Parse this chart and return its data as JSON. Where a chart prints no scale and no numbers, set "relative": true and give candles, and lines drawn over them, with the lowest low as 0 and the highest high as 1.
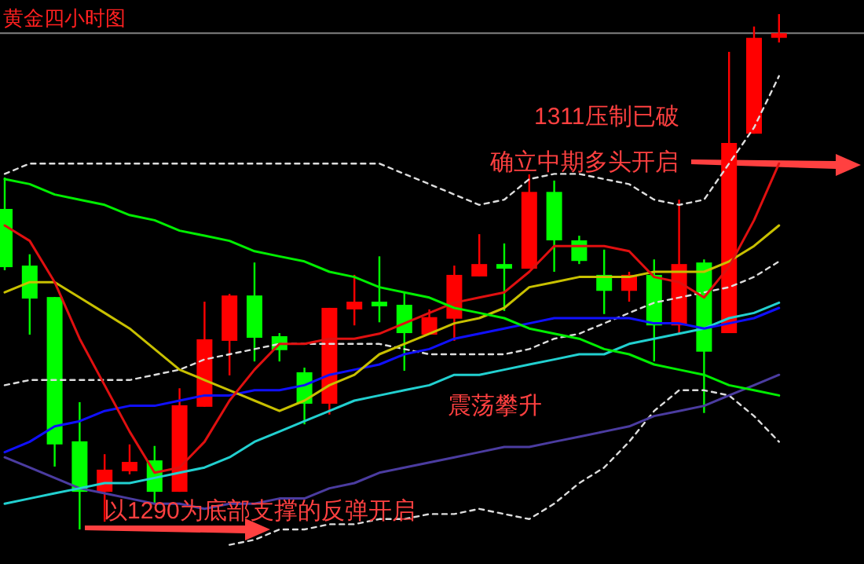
{
  "chart_data": {
    "type": "candlestick",
    "title": "黄金四小时图",
    "relative": true,
    "categories": [
      null,
      null,
      null,
      null,
      null,
      null,
      null,
      null,
      null,
      null,
      null,
      null,
      null,
      null,
      null,
      null,
      null,
      null,
      null,
      null,
      null,
      null,
      null,
      null,
      null,
      null,
      null,
      null,
      null,
      null,
      null,
      null
    ],
    "ohlc": [
      [
        0.622,
        0.683,
        0.503,
        0.509
      ],
      [
        0.512,
        0.534,
        0.378,
        0.448
      ],
      [
        0.451,
        0.451,
        0.122,
        0.165
      ],
      [
        0.171,
        0.247,
        0,
        0.073
      ],
      [
        0.073,
        0.146,
        0.015,
        0.116
      ],
      [
        0.113,
        0.165,
        0.107,
        0.131
      ],
      [
        0.134,
        0.162,
        0.052,
        0.073
      ],
      [
        0.073,
        0.274,
        0.073,
        0.241
      ],
      [
        0.238,
        0.442,
        0.238,
        0.369
      ],
      [
        0.366,
        0.457,
        0.299,
        0.454
      ],
      [
        0.454,
        0.518,
        0.326,
        0.372
      ],
      [
        0.375,
        0.381,
        0.326,
        0.348
      ],
      [
        0.305,
        0.314,
        0.204,
        0.244
      ],
      [
        0.244,
        0.43,
        0.223,
        0.43
      ],
      [
        0.427,
        0.494,
        0.396,
        0.442
      ],
      [
        0.442,
        0.53,
        0.402,
        0.433
      ],
      [
        0.436,
        0.46,
        0.308,
        0.381
      ],
      [
        0.378,
        0.427,
        0.378,
        0.412
      ],
      [
        0.409,
        0.512,
        0.366,
        0.494
      ],
      [
        0.491,
        0.573,
        0.491,
        0.515
      ],
      [
        0.515,
        0.555,
        0.424,
        0.506
      ],
      [
        0.506,
        0.689,
        0.506,
        0.655
      ],
      [
        0.655,
        0.677,
        0.5,
        0.561
      ],
      [
        0.561,
        0.57,
        0.515,
        0.521
      ],
      [
        0.494,
        0.543,
        0.418,
        0.463
      ],
      [
        0.463,
        0.5,
        0.442,
        0.494
      ],
      [
        0.494,
        0.524,
        0.326,
        0.396
      ],
      [
        0.396,
        0.64,
        0.381,
        0.515
      ],
      [
        0.518,
        0.524,
        0.226,
        0.345
      ],
      [
        0.381,
        0.927,
        0.381,
        0.75
      ],
      [
        0.768,
        0.976,
        0.768,
        0.954
      ],
      [
        0.954,
        1,
        0.945,
        0.963
      ]
    ],
    "colors": [
      "#00ff00",
      "#00ff00",
      "#00ff00",
      "#00ff00",
      "#ff0000",
      "#ff0000",
      "#00ff00",
      "#ff0000",
      "#ff0000",
      "#ff0000",
      "#00ff00",
      "#00ff00",
      "#00ff00",
      "#ff0000",
      "#ff0000",
      "#00ff00",
      "#00ff00",
      "#ff0000",
      "#ff0000",
      "#ff0000",
      "#00ff00",
      "#ff0000",
      "#00ff00",
      "#00ff00",
      "#00ff00",
      "#ff0000",
      "#00ff00",
      "#ff0000",
      "#00ff00",
      "#ff0000",
      "#ff0000",
      "#ff0000"
    ],
    "series": [
      {
        "type": "line",
        "color": "#dddddd",
        "line_style": "dashed",
        "values": [
          0.69,
          0.71,
          0.71,
          0.71,
          0.71,
          0.71,
          0.71,
          0.71,
          0.71,
          0.71,
          0.71,
          0.71,
          0.71,
          0.71,
          0.71,
          0.71,
          0.69,
          0.67,
          0.65,
          0.63,
          0.64,
          0.68,
          0.69,
          0.69,
          0.68,
          0.67,
          0.64,
          0.63,
          0.64,
          0.71,
          0.78,
          0.88
        ]
      },
      {
        "type": "line",
        "color": "#dddddd",
        "line_style": "dashed",
        "values": [
          0.28,
          0.29,
          0.29,
          0.29,
          0.29,
          0.29,
          0.3,
          0.31,
          0.33,
          0.34,
          0.35,
          0.36,
          0.36,
          0.36,
          0.36,
          0.36,
          0.35,
          0.34,
          0.34,
          0.34,
          0.34,
          0.35,
          0.37,
          0.38,
          0.4,
          0.42,
          0.44,
          0.45,
          0.46,
          0.47,
          0.49,
          0.52
        ]
      },
      {
        "type": "line",
        "color": "#dddddd",
        "line_style": "dashed",
        "values": [
          null,
          null,
          null,
          null,
          null,
          null,
          null,
          null,
          null,
          -0.03,
          -0.02,
          0,
          0,
          0.01,
          0.01,
          0.02,
          0.02,
          0.03,
          0.03,
          0.04,
          0.03,
          0.02,
          0.05,
          0.09,
          0.12,
          0.17,
          0.23,
          0.27,
          0.27,
          0.26,
          0.22,
          0.17
        ]
      },
      {
        "type": "line",
        "color": "#4b3ca0",
        "values": [
          0.14,
          0.12,
          0.1,
          0.08,
          0.07,
          0.06,
          0.05,
          0.05,
          0.04,
          0.05,
          0.05,
          0.06,
          0.06,
          0.08,
          0.09,
          0.11,
          0.12,
          0.13,
          0.14,
          0.15,
          0.16,
          0.16,
          0.17,
          0.18,
          0.19,
          0.2,
          0.22,
          0.23,
          0.24,
          0.26,
          0.28,
          0.3
        ]
      },
      {
        "type": "line",
        "color": "#22d0d0",
        "values": [
          0.05,
          0.06,
          0.07,
          0.08,
          0.09,
          0.09,
          0.1,
          0.11,
          0.12,
          0.14,
          0.17,
          0.19,
          0.21,
          0.23,
          0.25,
          0.26,
          0.27,
          0.28,
          0.3,
          0.3,
          0.31,
          0.32,
          0.33,
          0.34,
          0.34,
          0.36,
          0.37,
          0.38,
          0.39,
          0.41,
          0.42,
          0.44
        ]
      },
      {
        "type": "line",
        "color": "#1010ff",
        "values": [
          0.15,
          0.17,
          0.2,
          0.21,
          0.23,
          0.24,
          0.24,
          0.25,
          0.26,
          0.26,
          0.27,
          0.27,
          0.28,
          0.3,
          0.31,
          0.32,
          0.34,
          0.35,
          0.37,
          0.38,
          0.39,
          0.4,
          0.41,
          0.41,
          0.41,
          0.41,
          0.4,
          0.4,
          0.39,
          0.4,
          0.41,
          0.43
        ]
      },
      {
        "type": "line",
        "color": "#c8c000",
        "values": [
          0.46,
          0.48,
          0.48,
          0.45,
          0.42,
          0.39,
          0.35,
          0.31,
          0.29,
          0.27,
          0.25,
          0.23,
          0.25,
          0.28,
          0.3,
          0.34,
          0.36,
          0.38,
          0.4,
          0.41,
          0.43,
          0.47,
          0.48,
          0.49,
          0.49,
          0.49,
          0.5,
          0.5,
          0.5,
          0.52,
          0.55,
          0.59
        ]
      },
      {
        "type": "line",
        "color": "#e01010",
        "values": [
          0.59,
          0.56,
          0.48,
          0.37,
          0.28,
          0.19,
          0.11,
          0.12,
          0.17,
          0.25,
          0.31,
          0.36,
          0.36,
          0.37,
          0.37,
          0.38,
          0.4,
          0.42,
          0.44,
          0.45,
          0.46,
          0.5,
          0.55,
          0.55,
          0.55,
          0.54,
          0.49,
          0.48,
          0.45,
          0.51,
          0.6,
          0.71
        ]
      },
      {
        "type": "line",
        "color": "#00ee00",
        "values": [
          0.68,
          0.67,
          0.65,
          0.64,
          0.63,
          0.61,
          0.6,
          0.58,
          0.57,
          0.56,
          0.54,
          0.53,
          0.52,
          0.5,
          0.49,
          0.47,
          0.46,
          0.45,
          0.43,
          0.42,
          0.41,
          0.39,
          0.38,
          0.37,
          0.35,
          0.34,
          0.32,
          0.31,
          0.3,
          0.28,
          0.27,
          0.26
        ]
      }
    ],
    "ref_lines": [
      {
        "axis": "y",
        "value": 0.963,
        "color": "#808080"
      }
    ],
    "annotations": [
      "1311压制已破",
      "确立中期多头开启",
      "震荡攀升",
      "以1290为底部支撑的反弹开启"
    ]
  }
}
